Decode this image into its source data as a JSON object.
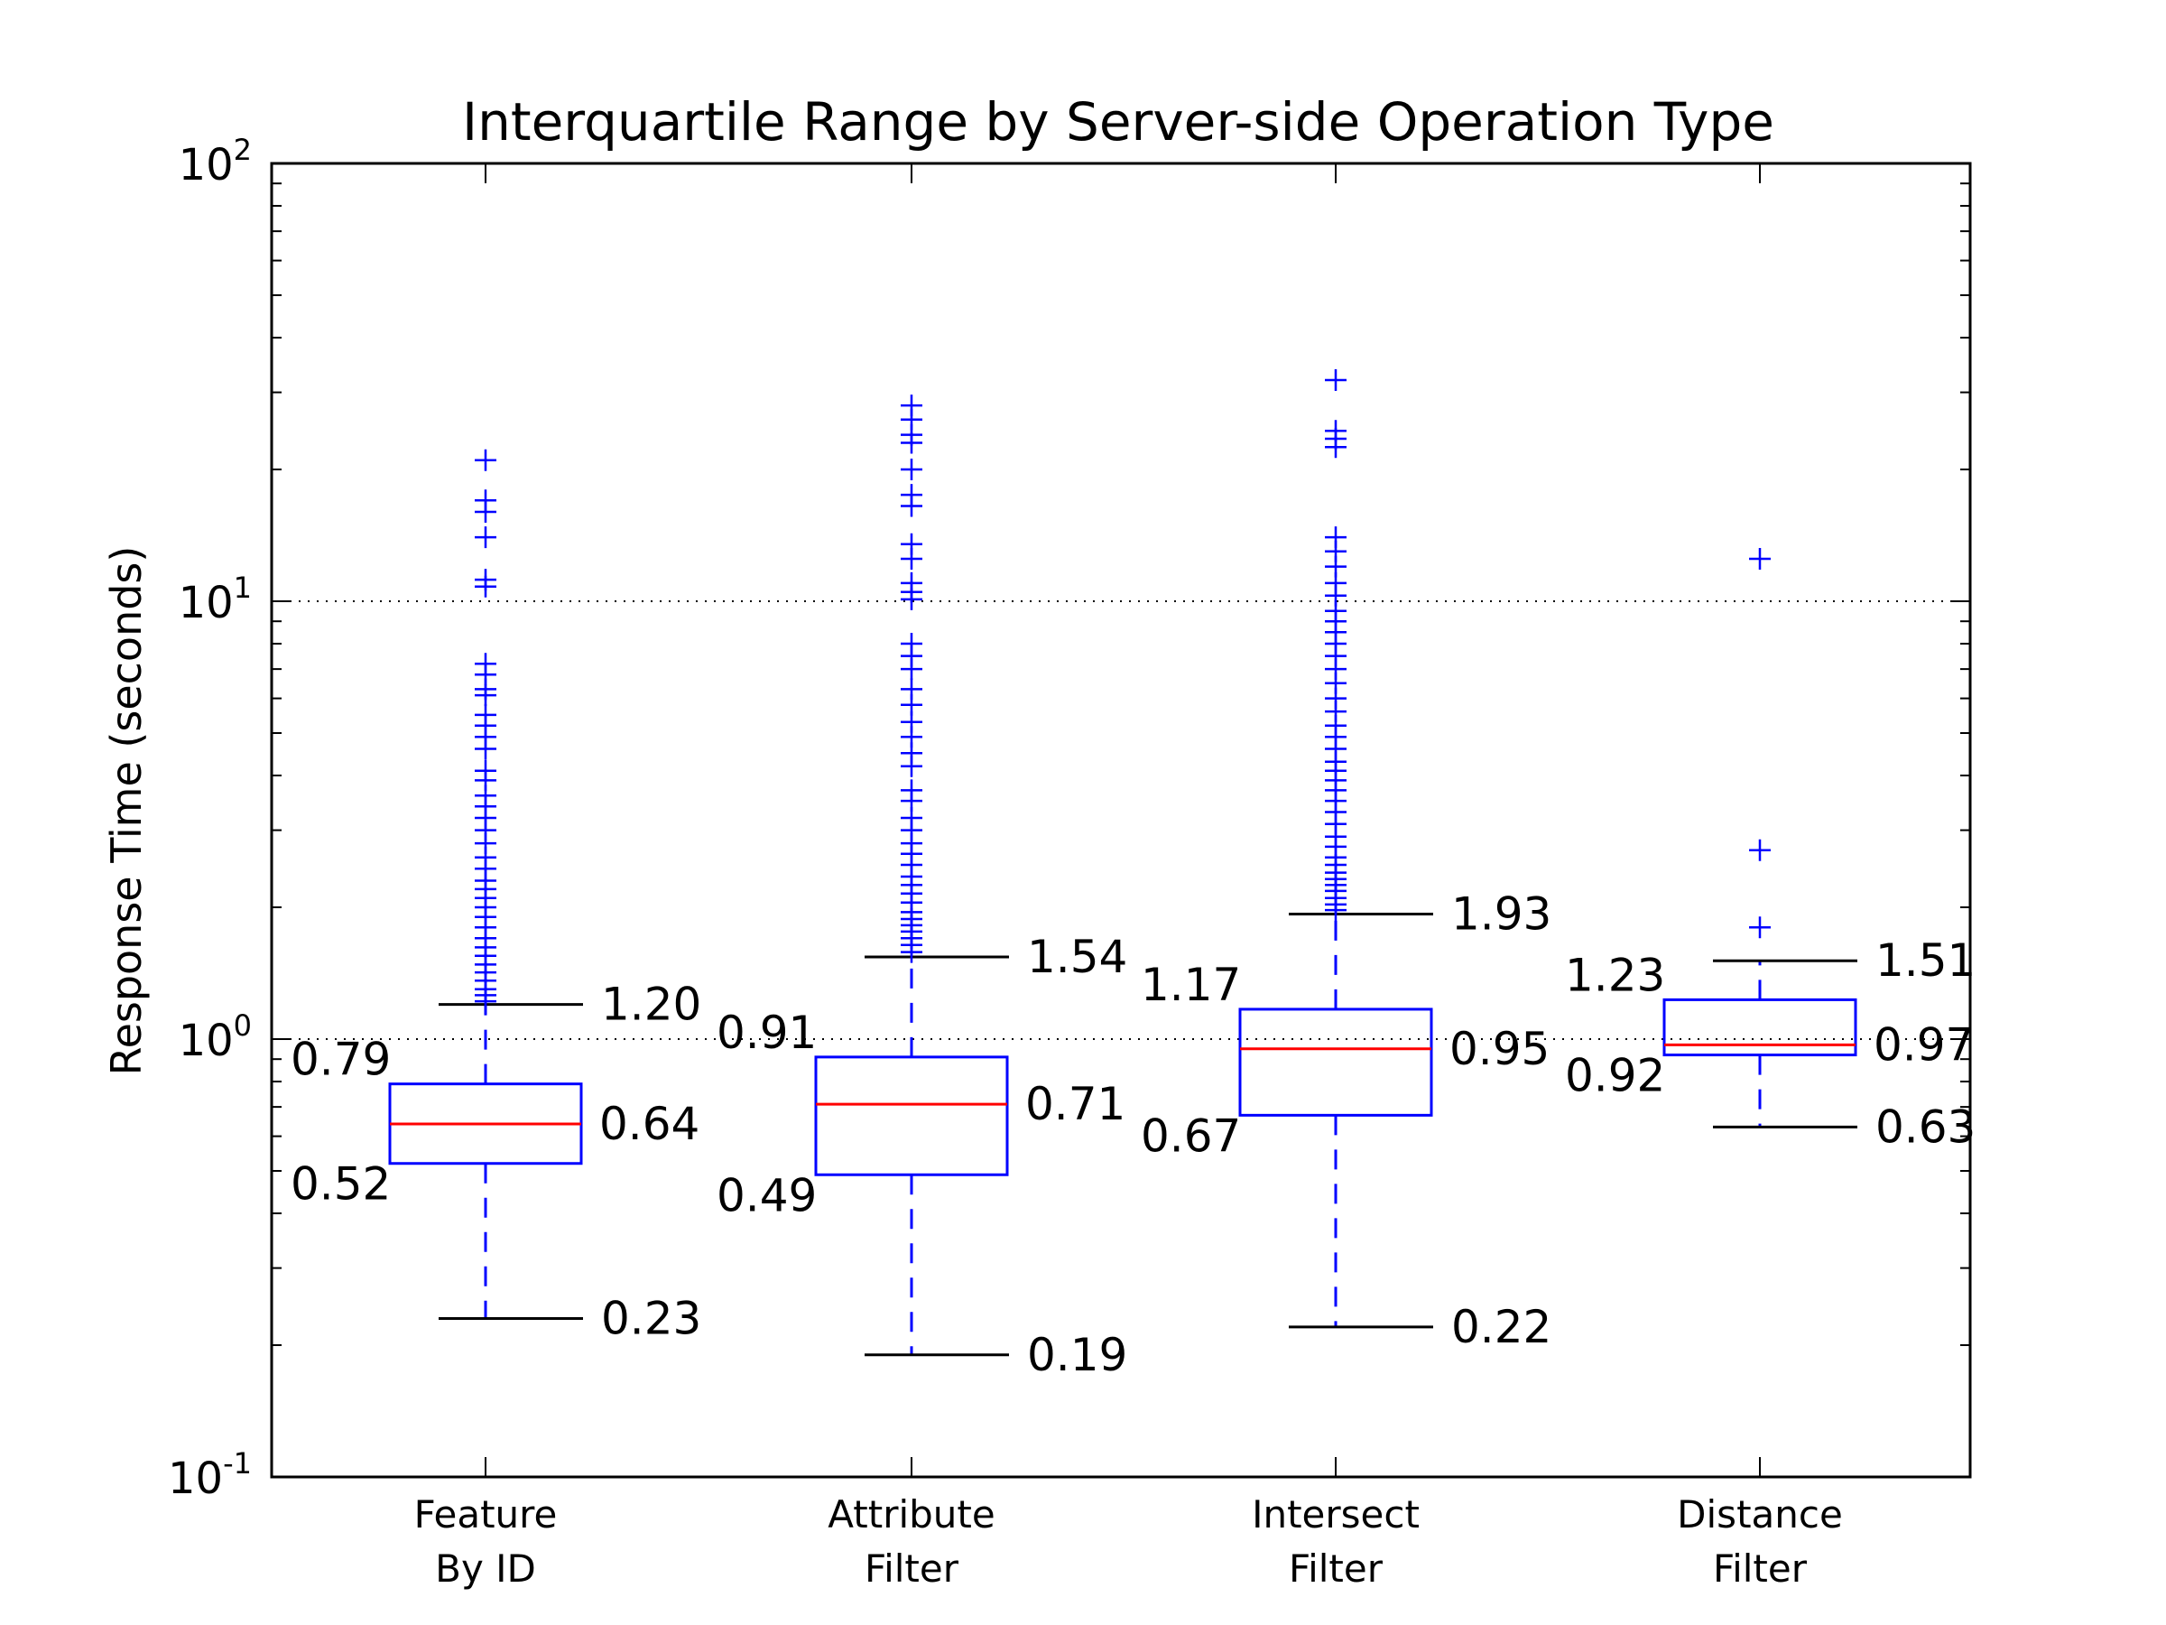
{
  "chart_data": {
    "type": "box",
    "title": "Interquartile Range by Server-side Operation Type",
    "xlabel": "",
    "ylabel": "Response Time (seconds)",
    "yscale": "log",
    "ylim": [
      0.1,
      100
    ],
    "ytick_labels": [
      {
        "base": "10",
        "exp": "-1",
        "value": 0.1
      },
      {
        "base": "10",
        "exp": "0",
        "value": 1
      },
      {
        "base": "10",
        "exp": "1",
        "value": 10
      },
      {
        "base": "10",
        "exp": "2",
        "value": 100
      }
    ],
    "grid": "horizontal dotted at major ticks",
    "colors": {
      "box": "#0000ff",
      "median": "#ff0000",
      "whisker_cap": "#000000",
      "flier": "#0000ff"
    },
    "categories": [
      {
        "line1": "Feature",
        "line2": "By ID"
      },
      {
        "line1": "Attribute",
        "line2": "Filter"
      },
      {
        "line1": "Intersect",
        "line2": "Filter"
      },
      {
        "line1": "Distance",
        "line2": "Filter"
      }
    ],
    "boxes": [
      {
        "whisker_low": 0.23,
        "q1": 0.52,
        "median": 0.64,
        "q3": 0.79,
        "whisker_high": 1.2,
        "labels": {
          "whisker_low": "0.23",
          "q1": "0.52",
          "median": "0.64",
          "q3": "0.79",
          "whisker_high": "1.20"
        },
        "fliers": [
          21,
          17,
          16,
          14,
          11.2,
          10.8,
          7.2,
          6.8,
          6.3,
          6.1,
          5.5,
          5.2,
          4.9,
          4.6,
          4.1,
          3.9,
          3.6,
          3.4,
          3.2,
          3.0,
          2.8,
          2.6,
          2.45,
          2.3,
          2.2,
          2.1,
          2.0,
          1.9,
          1.8,
          1.7,
          1.62,
          1.55,
          1.48,
          1.42,
          1.36,
          1.3,
          1.26,
          1.22
        ]
      },
      {
        "whisker_low": 0.19,
        "q1": 0.49,
        "median": 0.71,
        "q3": 0.91,
        "whisker_high": 1.54,
        "labels": {
          "whisker_low": "0.19",
          "q1": "0.49",
          "median": "0.71",
          "q3": "0.91",
          "whisker_high": "1.54"
        },
        "fliers": [
          28,
          26,
          24,
          23,
          20,
          17.5,
          16.5,
          13.5,
          12.5,
          11,
          10.5,
          10.1,
          8,
          7.5,
          7,
          6.3,
          5.8,
          5.3,
          4.9,
          4.5,
          4.2,
          3.7,
          3.5,
          3.2,
          3.0,
          2.8,
          2.65,
          2.5,
          2.35,
          2.25,
          2.15,
          2.05,
          1.95,
          1.88,
          1.82,
          1.76,
          1.7,
          1.64,
          1.58
        ]
      },
      {
        "whisker_low": 0.22,
        "q1": 0.67,
        "median": 0.95,
        "q3": 1.17,
        "whisker_high": 1.93,
        "labels": {
          "whisker_low": "0.22",
          "q1": "0.67",
          "median": "0.95",
          "q3": "1.17",
          "whisker_high": "1.93"
        },
        "fliers": [
          32,
          24.5,
          23.5,
          22.5,
          14,
          13,
          12,
          11,
          10.3,
          9.5,
          9,
          8.5,
          8,
          7.5,
          7,
          6.5,
          6,
          5.6,
          5.2,
          4.9,
          4.6,
          4.3,
          4.1,
          3.9,
          3.7,
          3.5,
          3.3,
          3.1,
          2.9,
          2.75,
          2.6,
          2.5,
          2.4,
          2.32,
          2.25,
          2.18,
          2.1,
          2.03,
          1.97
        ]
      },
      {
        "whisker_low": 0.63,
        "q1": 0.92,
        "median": 0.97,
        "q3": 1.23,
        "whisker_high": 1.51,
        "labels": {
          "whisker_low": "0.63",
          "q1": "0.92",
          "median": "0.97",
          "q3": "1.23",
          "whisker_high": "1.51"
        },
        "fliers": [
          12.5,
          2.7,
          1.8
        ]
      }
    ]
  }
}
